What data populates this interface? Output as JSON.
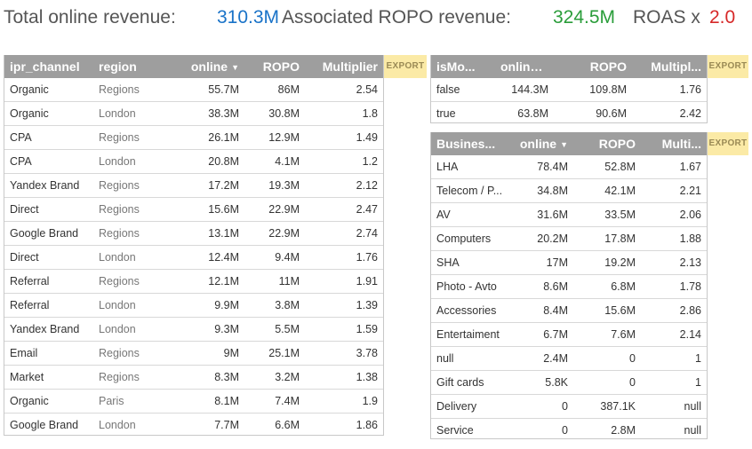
{
  "header": {
    "total_label": "Total online revenue:",
    "total_value": "310.3M",
    "ropo_label": "Associated ROPO revenue:",
    "ropo_value": "324.5M",
    "roas_label": "ROAS x",
    "roas_value": "2.0"
  },
  "export_label": "EXPORT",
  "sort_icon": "caret-down-icon",
  "colors": {
    "header_bg": "#9e9e9e",
    "blue": "#1a73c8",
    "green": "#2a9d3a",
    "red": "#d62828",
    "export_bg": "#fbeaa6"
  },
  "channel_table": {
    "columns": [
      "ipr_channel",
      "region",
      "online",
      "ROPO",
      "Multiplier"
    ],
    "rows": [
      [
        "Organic",
        "Regions",
        "55.7M",
        "86M",
        "2.54"
      ],
      [
        "Organic",
        "London",
        "38.3M",
        "30.8M",
        "1.8"
      ],
      [
        "CPA",
        "Regions",
        "26.1M",
        "12.9M",
        "1.49"
      ],
      [
        "CPA",
        "London",
        "20.8M",
        "4.1M",
        "1.2"
      ],
      [
        "Yandex Brand",
        "Regions",
        "17.2M",
        "19.3M",
        "2.12"
      ],
      [
        "Direct",
        "Regions",
        "15.6M",
        "22.9M",
        "2.47"
      ],
      [
        "Google Brand",
        "Regions",
        "13.1M",
        "22.9M",
        "2.74"
      ],
      [
        "Direct",
        "London",
        "12.4M",
        "9.4M",
        "1.76"
      ],
      [
        "Referral",
        "Regions",
        "12.1M",
        "11M",
        "1.91"
      ],
      [
        "Referral",
        "London",
        "9.9M",
        "3.8M",
        "1.39"
      ],
      [
        "Yandex Brand",
        "London",
        "9.3M",
        "5.5M",
        "1.59"
      ],
      [
        "Email",
        "Regions",
        "9M",
        "25.1M",
        "3.78"
      ],
      [
        "Market",
        "Regions",
        "8.3M",
        "3.2M",
        "1.38"
      ],
      [
        "Organic",
        "Paris",
        "8.1M",
        "7.4M",
        "1.9"
      ],
      [
        "Google Brand",
        "London",
        "7.7M",
        "6.6M",
        "1.86"
      ]
    ]
  },
  "mobile_table": {
    "columns": [
      "isMo...",
      "online",
      "ROPO",
      "Multipl..."
    ],
    "rows": [
      [
        "false",
        "144.3M",
        "109.8M",
        "1.76"
      ],
      [
        "true",
        "63.8M",
        "90.6M",
        "2.42"
      ]
    ]
  },
  "business_table": {
    "columns": [
      "Busines...",
      "online",
      "ROPO",
      "Multi..."
    ],
    "rows": [
      [
        "LHA",
        "78.4M",
        "52.8M",
        "1.67"
      ],
      [
        "Telecom / P...",
        "34.8M",
        "42.1M",
        "2.21"
      ],
      [
        "AV",
        "31.6M",
        "33.5M",
        "2.06"
      ],
      [
        "Computers",
        "20.2M",
        "17.8M",
        "1.88"
      ],
      [
        "SHA",
        "17M",
        "19.2M",
        "2.13"
      ],
      [
        "Photo - Avto",
        "8.6M",
        "6.8M",
        "1.78"
      ],
      [
        "Accessories",
        "8.4M",
        "15.6M",
        "2.86"
      ],
      [
        "Entertaiment",
        "6.7M",
        "7.6M",
        "2.14"
      ],
      [
        "null",
        "2.4M",
        "0",
        "1"
      ],
      [
        "Gift cards",
        "5.8K",
        "0",
        "1"
      ],
      [
        "Delivery",
        "0",
        "387.1K",
        "null"
      ],
      [
        "Service",
        "0",
        "2.8M",
        "null"
      ]
    ]
  }
}
